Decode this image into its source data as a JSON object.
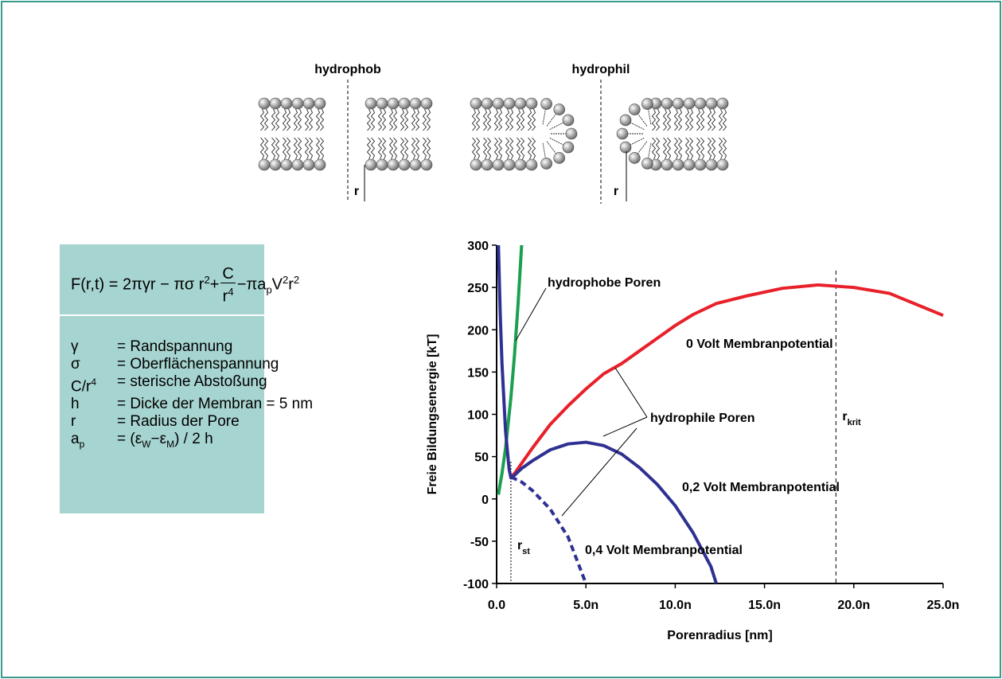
{
  "diagram": {
    "left_label": "hydrophob",
    "right_label": "hydrophil",
    "radius_labels": [
      "r",
      "r"
    ]
  },
  "formula": [
    "F(r,t) = 2πγr − πσ r",
    "2",
    "+",
    "C",
    "r",
    "4",
    "−πa",
    "p",
    "V",
    "2",
    "r",
    "2"
  ],
  "definitions": [
    [
      "γ",
      "= Randspannung"
    ],
    [
      "σ",
      "= Oberflächenspannung"
    ],
    [
      "C/r",
      "4",
      "= sterische Abstoßung"
    ],
    [
      "h",
      "= Dicke der Membran = 5 nm"
    ],
    [
      "r",
      "= Radius der Pore"
    ],
    [
      "a",
      "p",
      "= (ε",
      "W",
      "−ε",
      "M",
      ") / 2 h"
    ]
  ],
  "chart_data": {
    "type": "line",
    "xlabel": "Porenradius [nm]",
    "ylabel": "Freie Bildungsenergie [kT]",
    "x": [
      0.1,
      0.2,
      0.3,
      0.5,
      0.7,
      0.8,
      0.9,
      1,
      1.2,
      1.4,
      2,
      3,
      4,
      5,
      6,
      7,
      8,
      9,
      10,
      11,
      12,
      12.3,
      14,
      16,
      18,
      20,
      22,
      25
    ],
    "series": [
      {
        "color": "#1aa050",
        "values": [
          5,
          18,
          30,
          60,
          100,
          120,
          145,
          170,
          230,
          300,
          null,
          null,
          null,
          null,
          null,
          null,
          null,
          null,
          null,
          null,
          null,
          null,
          null,
          null,
          null,
          null,
          null,
          null
        ]
      },
      {
        "color": "#e8202a",
        "values": [
          null,
          null,
          null,
          null,
          null,
          27,
          28,
          30,
          36,
          42,
          60,
          88,
          110,
          130,
          148,
          160,
          175,
          190,
          205,
          218,
          228,
          231,
          240,
          249,
          253,
          250,
          243,
          217
        ]
      },
      {
        "color": "#2e3192",
        "values": [
          300,
          220,
          160,
          80,
          35,
          25,
          26,
          28,
          32,
          36,
          45,
          58,
          65,
          67,
          63,
          53,
          37,
          17,
          -8,
          -40,
          -80,
          -100,
          null,
          null,
          null,
          null,
          null,
          null
        ]
      },
      {
        "color": "#2e3192",
        "dash": true,
        "values": [
          null,
          null,
          null,
          null,
          null,
          25,
          25,
          24,
          22,
          20,
          10,
          -12,
          -45,
          -100,
          null,
          null,
          null,
          null,
          null,
          null,
          null,
          null,
          null,
          null,
          null,
          null,
          null,
          null
        ]
      }
    ],
    "xlim": [
      0,
      25
    ],
    "ylim": [
      -100,
      300
    ],
    "xticks": [
      {
        "value": 0,
        "label": "0.0"
      },
      {
        "value": 5,
        "label": "5.0n"
      },
      {
        "value": 10,
        "label": "10.0n"
      },
      {
        "value": 15,
        "label": "15.0n"
      },
      {
        "value": 20,
        "label": "20.0n"
      },
      {
        "value": 25,
        "label": "25.0n"
      }
    ],
    "yticks": [
      -100,
      -50,
      0,
      50,
      100,
      150,
      200,
      250,
      300
    ],
    "annotations": [
      "hydrophobe Poren",
      "0 Volt Membranpotential",
      "hydrophile Poren",
      "0,2 Volt Membranpotential",
      "0,4 Volt Membranpotential"
    ],
    "markers": [
      {
        "x": 0.8,
        "label": "r",
        "subscript": "st"
      },
      {
        "x": 19,
        "label": "r",
        "subscript": "krit"
      }
    ]
  }
}
